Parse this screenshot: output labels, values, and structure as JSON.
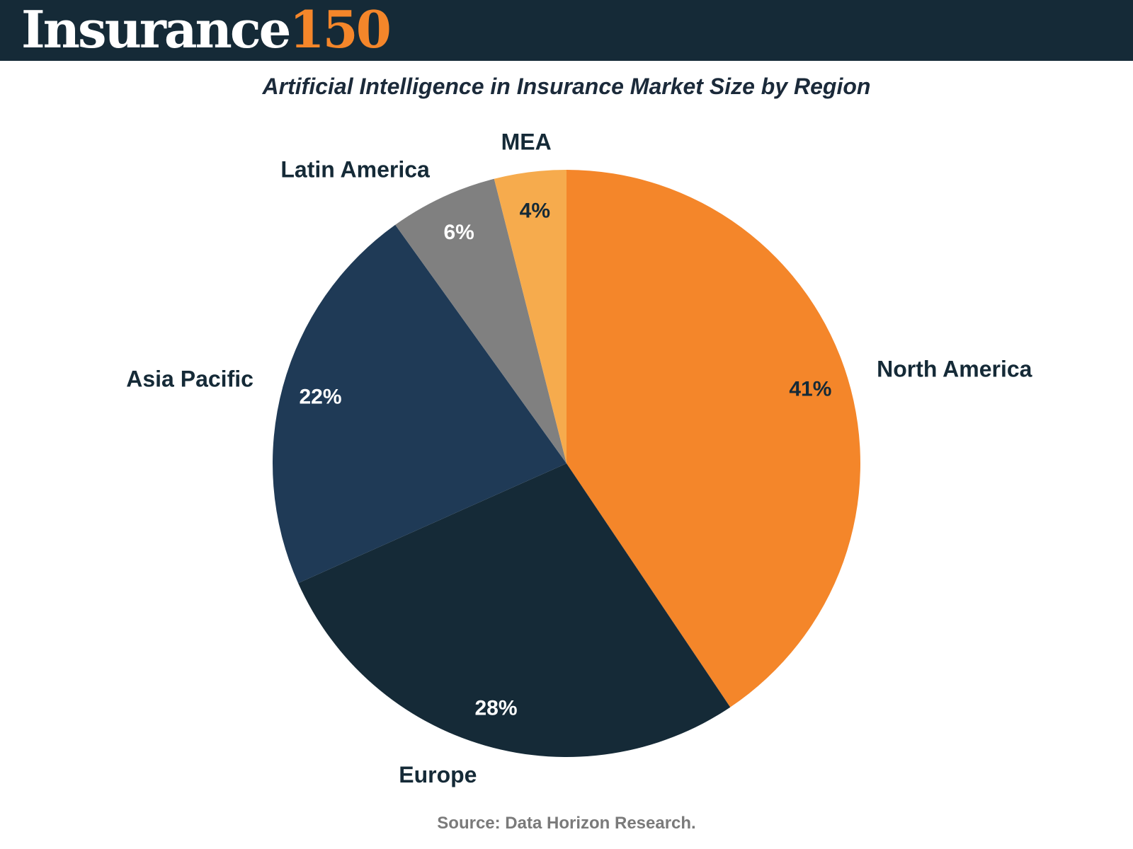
{
  "header": {
    "logo_word": "Insurance",
    "logo_number": "150"
  },
  "source": "Source: Data Horizon Research.",
  "chart_data": {
    "type": "pie",
    "title": "Artificial Intelligence in Insurance Market Size by Region",
    "unit": "%",
    "slices": [
      {
        "label": "North America",
        "value": 41,
        "display": "41%",
        "color": "#f4862a",
        "label_color": "#152a37"
      },
      {
        "label": "Europe",
        "value": 28,
        "display": "28%",
        "color": "#152a37",
        "label_color": "#ffffff"
      },
      {
        "label": "Asia Pacific",
        "value": 22,
        "display": "22%",
        "color": "#1f3a56",
        "label_color": "#ffffff"
      },
      {
        "label": "Latin America",
        "value": 6,
        "display": "6%",
        "color": "#808080",
        "label_color": "#ffffff"
      },
      {
        "label": "MEA",
        "value": 4,
        "display": "4%",
        "color": "#f6ab4d",
        "label_color": "#152a37"
      }
    ]
  }
}
